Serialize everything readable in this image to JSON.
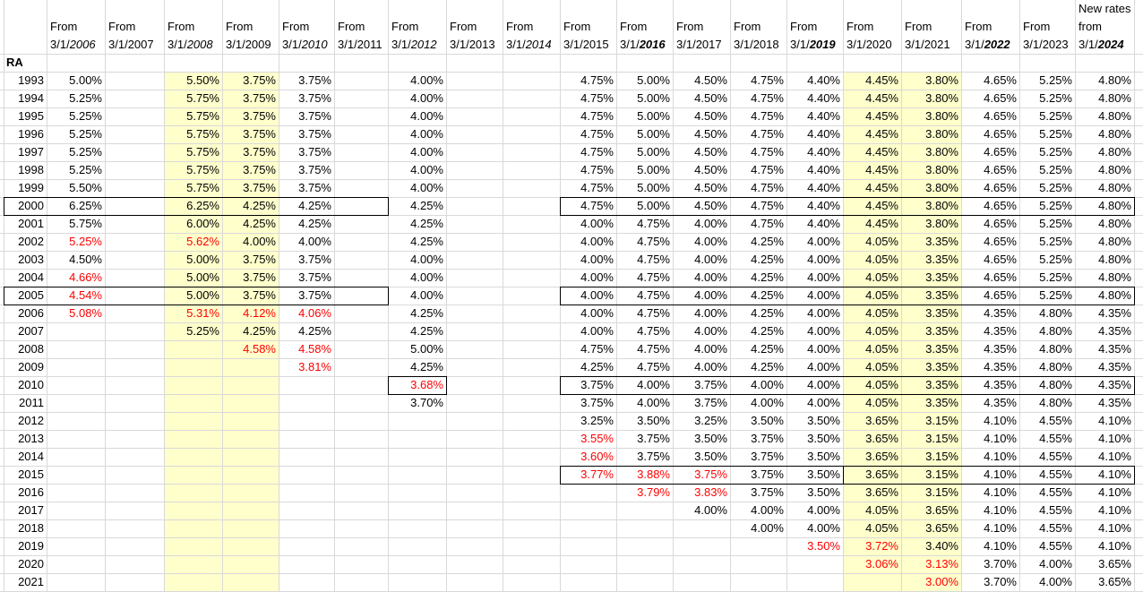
{
  "header": {
    "cols": [
      {
        "l1": "From",
        "pre": "3/1/",
        "yr": "2006",
        "fmt": "it"
      },
      {
        "l1": "From",
        "pre": "3/1/",
        "yr": "2007",
        "fmt": ""
      },
      {
        "l1": "From",
        "pre": "3/1/",
        "yr": "2008",
        "fmt": "it"
      },
      {
        "l1": "From",
        "pre": "3/1/",
        "yr": "2009",
        "fmt": ""
      },
      {
        "l1": "From",
        "pre": "3/1/",
        "yr": "2010",
        "fmt": "it"
      },
      {
        "l1": "From",
        "pre": "3/1/",
        "yr": "2011",
        "fmt": ""
      },
      {
        "l1": "From",
        "pre": "3/1/",
        "yr": "2012",
        "fmt": "it"
      },
      {
        "l1": "From",
        "pre": "3/1/",
        "yr": "2013",
        "fmt": ""
      },
      {
        "l1": "From",
        "pre": "3/1/",
        "yr": "2014",
        "fmt": "it"
      },
      {
        "l1": "From",
        "pre": "3/1/",
        "yr": "2015",
        "fmt": ""
      },
      {
        "l1": "From",
        "pre": "3/1/",
        "yr": "2016",
        "fmt": "bi"
      },
      {
        "l1": "From",
        "pre": "3/1/",
        "yr": "2017",
        "fmt": ""
      },
      {
        "l1": "From",
        "pre": "3/1/",
        "yr": "2018",
        "fmt": ""
      },
      {
        "l1": "From",
        "pre": "3/1/",
        "yr": "2019",
        "fmt": "bi"
      },
      {
        "l1": "From",
        "pre": "3/1/",
        "yr": "2020",
        "fmt": ""
      },
      {
        "l1": "From",
        "pre": "3/1/",
        "yr": "2021",
        "fmt": ""
      },
      {
        "l1": "From",
        "pre": "3/1/",
        "yr": "2022",
        "fmt": "bi"
      },
      {
        "l1": "From",
        "pre": "3/1/",
        "yr": "2023",
        "fmt": ""
      },
      {
        "l1": "New rates",
        "l1b": "from",
        "pre": "3/1/",
        "yr": "2024",
        "fmt": "bi"
      }
    ]
  },
  "ra_label": "RA",
  "rows": [
    {
      "year": "1993",
      "v": [
        "5.00%",
        "",
        "5.50%",
        "3.75%",
        "3.75%",
        "",
        "4.00%",
        "",
        "",
        "4.75%",
        "5.00%",
        "4.50%",
        "4.75%",
        "4.40%",
        "4.45%",
        "3.80%",
        "4.65%",
        "5.25%",
        "4.80%"
      ]
    },
    {
      "year": "1994",
      "v": [
        "5.25%",
        "",
        "5.75%",
        "3.75%",
        "3.75%",
        "",
        "4.00%",
        "",
        "",
        "4.75%",
        "5.00%",
        "4.50%",
        "4.75%",
        "4.40%",
        "4.45%",
        "3.80%",
        "4.65%",
        "5.25%",
        "4.80%"
      ]
    },
    {
      "year": "1995",
      "v": [
        "5.25%",
        "",
        "5.75%",
        "3.75%",
        "3.75%",
        "",
        "4.00%",
        "",
        "",
        "4.75%",
        "5.00%",
        "4.50%",
        "4.75%",
        "4.40%",
        "4.45%",
        "3.80%",
        "4.65%",
        "5.25%",
        "4.80%"
      ]
    },
    {
      "year": "1996",
      "v": [
        "5.25%",
        "",
        "5.75%",
        "3.75%",
        "3.75%",
        "",
        "4.00%",
        "",
        "",
        "4.75%",
        "5.00%",
        "4.50%",
        "4.75%",
        "4.40%",
        "4.45%",
        "3.80%",
        "4.65%",
        "5.25%",
        "4.80%"
      ]
    },
    {
      "year": "1997",
      "v": [
        "5.25%",
        "",
        "5.75%",
        "3.75%",
        "3.75%",
        "",
        "4.00%",
        "",
        "",
        "4.75%",
        "5.00%",
        "4.50%",
        "4.75%",
        "4.40%",
        "4.45%",
        "3.80%",
        "4.65%",
        "5.25%",
        "4.80%"
      ]
    },
    {
      "year": "1998",
      "v": [
        "5.25%",
        "",
        "5.75%",
        "3.75%",
        "3.75%",
        "",
        "4.00%",
        "",
        "",
        "4.75%",
        "5.00%",
        "4.50%",
        "4.75%",
        "4.40%",
        "4.45%",
        "3.80%",
        "4.65%",
        "5.25%",
        "4.80%"
      ]
    },
    {
      "year": "1999",
      "v": [
        "5.50%",
        "",
        "5.75%",
        "3.75%",
        "3.75%",
        "",
        "4.00%",
        "",
        "",
        "4.75%",
        "5.00%",
        "4.50%",
        "4.75%",
        "4.40%",
        "4.45%",
        "3.80%",
        "4.65%",
        "5.25%",
        "4.80%"
      ]
    },
    {
      "year": "2000",
      "v": [
        "6.25%",
        "",
        "6.25%",
        "4.25%",
        "4.25%",
        "",
        "4.25%",
        "",
        "",
        "4.75%",
        "5.00%",
        "4.50%",
        "4.75%",
        "4.40%",
        "4.45%",
        "3.80%",
        "4.65%",
        "5.25%",
        "4.80%"
      ]
    },
    {
      "year": "2001",
      "v": [
        "5.75%",
        "",
        "6.00%",
        "4.25%",
        "4.25%",
        "",
        "4.25%",
        "",
        "",
        "4.00%",
        "4.75%",
        "4.00%",
        "4.75%",
        "4.40%",
        "4.45%",
        "3.80%",
        "4.65%",
        "5.25%",
        "4.80%"
      ]
    },
    {
      "year": "2002",
      "v": [
        "5.25%",
        "",
        "5.62%",
        "4.00%",
        "4.00%",
        "",
        "4.25%",
        "",
        "",
        "4.00%",
        "4.75%",
        "4.00%",
        "4.25%",
        "4.00%",
        "4.05%",
        "3.35%",
        "4.65%",
        "5.25%",
        "4.80%"
      ],
      "red": [
        0,
        2
      ]
    },
    {
      "year": "2003",
      "v": [
        "4.50%",
        "",
        "5.00%",
        "3.75%",
        "3.75%",
        "",
        "4.00%",
        "",
        "",
        "4.00%",
        "4.75%",
        "4.00%",
        "4.25%",
        "4.00%",
        "4.05%",
        "3.35%",
        "4.65%",
        "5.25%",
        "4.80%"
      ]
    },
    {
      "year": "2004",
      "v": [
        "4.66%",
        "",
        "5.00%",
        "3.75%",
        "3.75%",
        "",
        "4.00%",
        "",
        "",
        "4.00%",
        "4.75%",
        "4.00%",
        "4.25%",
        "4.00%",
        "4.05%",
        "3.35%",
        "4.65%",
        "5.25%",
        "4.80%"
      ],
      "red": [
        0
      ]
    },
    {
      "year": "2005",
      "v": [
        "4.54%",
        "",
        "5.00%",
        "3.75%",
        "3.75%",
        "",
        "4.00%",
        "",
        "",
        "4.00%",
        "4.75%",
        "4.00%",
        "4.25%",
        "4.00%",
        "4.05%",
        "3.35%",
        "4.65%",
        "5.25%",
        "4.80%"
      ],
      "red": [
        0
      ]
    },
    {
      "year": "2006",
      "v": [
        "5.08%",
        "",
        "5.31%",
        "4.12%",
        "4.06%",
        "",
        "4.25%",
        "",
        "",
        "4.00%",
        "4.75%",
        "4.00%",
        "4.25%",
        "4.00%",
        "4.05%",
        "3.35%",
        "4.35%",
        "4.80%",
        "4.35%"
      ],
      "red": [
        0,
        2,
        3,
        4
      ]
    },
    {
      "year": "2007",
      "v": [
        "",
        "",
        "5.25%",
        "4.25%",
        "4.25%",
        "",
        "4.25%",
        "",
        "",
        "4.00%",
        "4.75%",
        "4.00%",
        "4.25%",
        "4.00%",
        "4.05%",
        "3.35%",
        "4.35%",
        "4.80%",
        "4.35%"
      ]
    },
    {
      "year": "2008",
      "v": [
        "",
        "",
        "",
        "4.58%",
        "4.58%",
        "",
        "5.00%",
        "",
        "",
        "4.75%",
        "4.75%",
        "4.00%",
        "4.25%",
        "4.00%",
        "4.05%",
        "3.35%",
        "4.35%",
        "4.80%",
        "4.35%"
      ],
      "red": [
        3,
        4
      ]
    },
    {
      "year": "2009",
      "v": [
        "",
        "",
        "",
        "",
        "3.81%",
        "",
        "4.25%",
        "",
        "",
        "4.25%",
        "4.75%",
        "4.00%",
        "4.25%",
        "4.00%",
        "4.05%",
        "3.35%",
        "4.35%",
        "4.80%",
        "4.35%"
      ],
      "red": [
        4
      ]
    },
    {
      "year": "2010",
      "v": [
        "",
        "",
        "",
        "",
        "",
        "",
        "3.68%",
        "",
        "",
        "3.75%",
        "4.00%",
        "3.75%",
        "4.00%",
        "4.00%",
        "4.05%",
        "3.35%",
        "4.35%",
        "4.80%",
        "4.35%"
      ],
      "red": [
        6
      ]
    },
    {
      "year": "2011",
      "v": [
        "",
        "",
        "",
        "",
        "",
        "",
        "3.70%",
        "",
        "",
        "3.75%",
        "4.00%",
        "3.75%",
        "4.00%",
        "4.00%",
        "4.05%",
        "3.35%",
        "4.35%",
        "4.80%",
        "4.35%"
      ]
    },
    {
      "year": "2012",
      "v": [
        "",
        "",
        "",
        "",
        "",
        "",
        "",
        "",
        "",
        "3.25%",
        "3.50%",
        "3.25%",
        "3.50%",
        "3.50%",
        "3.65%",
        "3.15%",
        "4.10%",
        "4.55%",
        "4.10%"
      ]
    },
    {
      "year": "2013",
      "v": [
        "",
        "",
        "",
        "",
        "",
        "",
        "",
        "",
        "",
        "3.55%",
        "3.75%",
        "3.50%",
        "3.75%",
        "3.50%",
        "3.65%",
        "3.15%",
        "4.10%",
        "4.55%",
        "4.10%"
      ],
      "red": [
        9
      ]
    },
    {
      "year": "2014",
      "v": [
        "",
        "",
        "",
        "",
        "",
        "",
        "",
        "",
        "",
        "3.60%",
        "3.75%",
        "3.50%",
        "3.75%",
        "3.50%",
        "3.65%",
        "3.15%",
        "4.10%",
        "4.55%",
        "4.10%"
      ],
      "red": [
        9
      ]
    },
    {
      "year": "2015",
      "v": [
        "",
        "",
        "",
        "",
        "",
        "",
        "",
        "",
        "",
        "3.77%",
        "3.88%",
        "3.75%",
        "3.75%",
        "3.50%",
        "3.65%",
        "3.15%",
        "4.10%",
        "4.55%",
        "4.10%"
      ],
      "red": [
        9,
        10,
        11
      ]
    },
    {
      "year": "2016",
      "v": [
        "",
        "",
        "",
        "",
        "",
        "",
        "",
        "",
        "",
        "",
        "3.79%",
        "3.83%",
        "3.75%",
        "3.50%",
        "3.65%",
        "3.15%",
        "4.10%",
        "4.55%",
        "4.10%"
      ],
      "red": [
        10,
        11
      ]
    },
    {
      "year": "2017",
      "v": [
        "",
        "",
        "",
        "",
        "",
        "",
        "",
        "",
        "",
        "",
        "",
        "4.00%",
        "4.00%",
        "4.00%",
        "4.05%",
        "3.65%",
        "4.10%",
        "4.55%",
        "4.10%"
      ]
    },
    {
      "year": "2018",
      "v": [
        "",
        "",
        "",
        "",
        "",
        "",
        "",
        "",
        "",
        "",
        "",
        "",
        "4.00%",
        "4.00%",
        "4.05%",
        "3.65%",
        "4.10%",
        "4.55%",
        "4.10%"
      ]
    },
    {
      "year": "2019",
      "v": [
        "",
        "",
        "",
        "",
        "",
        "",
        "",
        "",
        "",
        "",
        "",
        "",
        "",
        "3.50%",
        "3.72%",
        "3.40%",
        "4.10%",
        "4.55%",
        "4.10%"
      ],
      "red": [
        13,
        14
      ]
    },
    {
      "year": "2020",
      "v": [
        "",
        "",
        "",
        "",
        "",
        "",
        "",
        "",
        "",
        "",
        "",
        "",
        "",
        "",
        "3.06%",
        "3.13%",
        "3.70%",
        "4.00%",
        "3.65%"
      ],
      "red": [
        14,
        15
      ]
    },
    {
      "year": "2021",
      "v": [
        "",
        "",
        "",
        "",
        "",
        "",
        "",
        "",
        "",
        "",
        "",
        "",
        "",
        "",
        "",
        "3.00%",
        "3.70%",
        "4.00%",
        "3.65%"
      ],
      "red": [
        15
      ]
    }
  ],
  "colors": {
    "highlight": "#ffffcc",
    "red_text": "#ff0000",
    "gridline": "#d9d9d9",
    "box_border": "#000000"
  }
}
